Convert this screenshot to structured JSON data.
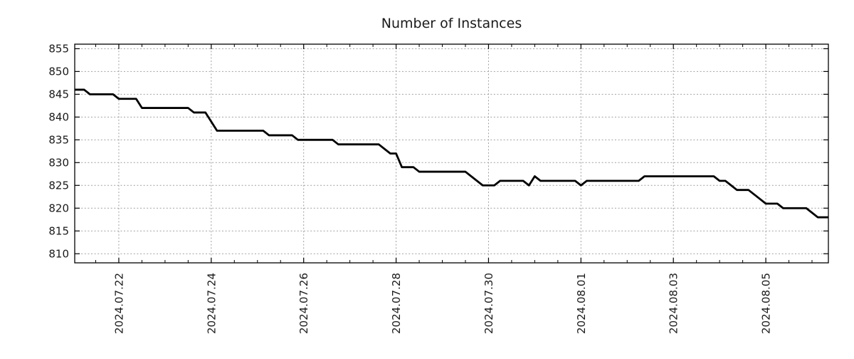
{
  "chart_data": {
    "type": "line",
    "title": "Number of Instances",
    "legend": "none",
    "x_start": "2024.07.21 00:00",
    "x_step_hours": 3,
    "values": [
      846,
      846,
      846,
      845,
      845,
      845,
      845,
      845,
      844,
      844,
      844,
      844,
      842,
      842,
      842,
      842,
      842,
      842,
      842,
      842,
      842,
      841,
      841,
      841,
      839,
      837,
      837,
      837,
      837,
      837,
      837,
      837,
      837,
      837,
      836,
      836,
      836,
      836,
      836,
      835,
      835,
      835,
      835,
      835,
      835,
      835,
      834,
      834,
      834,
      834,
      834,
      834,
      834,
      834,
      833,
      832,
      832,
      829,
      829,
      829,
      828,
      828,
      828,
      828,
      828,
      828,
      828,
      828,
      828,
      827,
      826,
      825,
      825,
      825,
      826,
      826,
      826,
      826,
      826,
      825,
      827,
      826,
      826,
      826,
      826,
      826,
      826,
      826,
      825,
      826,
      826,
      826,
      826,
      826,
      826,
      826,
      826,
      826,
      826,
      827,
      827,
      827,
      827,
      827,
      827,
      827,
      827,
      827,
      827,
      827,
      827,
      827,
      826,
      826,
      825,
      824,
      824,
      824,
      823,
      822,
      821,
      821,
      821,
      820,
      820,
      820,
      820,
      820,
      819,
      818,
      818,
      818
    ],
    "ylim": [
      808,
      856
    ],
    "y_ticks": [
      810,
      815,
      820,
      825,
      830,
      835,
      840,
      845,
      850,
      855
    ],
    "x_tick_labels": [
      "2024.07.22",
      "2024.07.24",
      "2024.07.26",
      "2024.07.28",
      "2024.07.30",
      "2024.08.01",
      "2024.08.03",
      "2024.08.05"
    ],
    "x_tick_day_offsets": [
      1,
      3,
      5,
      7,
      9,
      11,
      13,
      15
    ],
    "x_minor_tick_interval_days": 0.5,
    "xlim_day_offsets": [
      0.046,
      16.354
    ],
    "grid": "dotted",
    "colors": {
      "line": "#000000",
      "grid": "#a0a0a0",
      "axis": "#000000",
      "text": "#1a1a1a",
      "background": "#ffffff"
    }
  }
}
